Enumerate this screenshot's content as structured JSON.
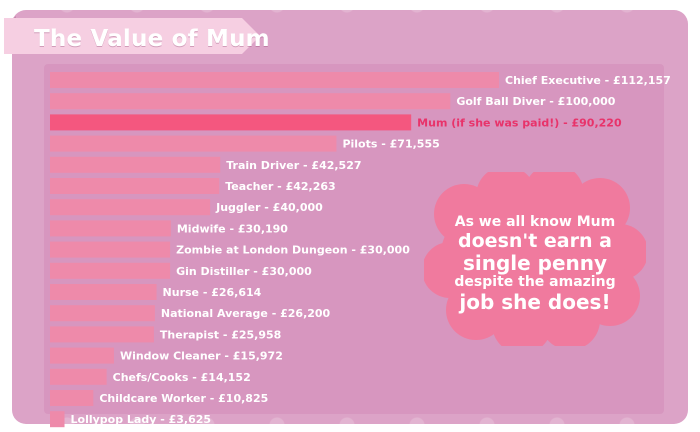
{
  "title": "The Value of Mum",
  "callout": {
    "lines": [
      "As we all know Mum",
      "doesn't earn a",
      "single penny",
      "despite the amazing",
      "job she does!"
    ]
  },
  "colors": {
    "background": "#dca3c7",
    "plot_area": "#d796bf",
    "bar": "#ee8aaa",
    "highlight_bar": "#f4577f",
    "highlight_text": "#e8336a",
    "label": "#ffffff",
    "ribbon": "#f6cfe2",
    "callout": "#f07a9e"
  },
  "chart_data": {
    "type": "bar",
    "orientation": "horizontal",
    "xlim": [
      0,
      112157
    ],
    "highlight_index": 2,
    "bars": [
      {
        "label": "Chief Executive - £112,157",
        "value": 112157
      },
      {
        "label": "Golf Ball Diver - £100,000",
        "value": 100000
      },
      {
        "label": "Mum (if she was paid!) - £90,220",
        "value": 90220
      },
      {
        "label": "Pilots - £71,555",
        "value": 71555
      },
      {
        "label": "Train Driver - £42,527",
        "value": 42527
      },
      {
        "label": "Teacher - £42,263",
        "value": 42263
      },
      {
        "label": "Juggler - £40,000",
        "value": 40000
      },
      {
        "label": "Midwife - £30,190",
        "value": 30190
      },
      {
        "label": "Zombie at London Dungeon - £30,000",
        "value": 30000
      },
      {
        "label": "Gin Distiller - £30,000",
        "value": 30000
      },
      {
        "label": "Nurse - £26,614",
        "value": 26614
      },
      {
        "label": "National Average - £26,200",
        "value": 26200
      },
      {
        "label": "Therapist - £25,958",
        "value": 25958
      },
      {
        "label": "Window Cleaner - £15,972",
        "value": 15972
      },
      {
        "label": "Chefs/Cooks - £14,152",
        "value": 14152
      },
      {
        "label": "Childcare Worker - £10,825",
        "value": 10825
      },
      {
        "label": "Lollypop Lady - £3,625",
        "value": 3625
      }
    ]
  }
}
